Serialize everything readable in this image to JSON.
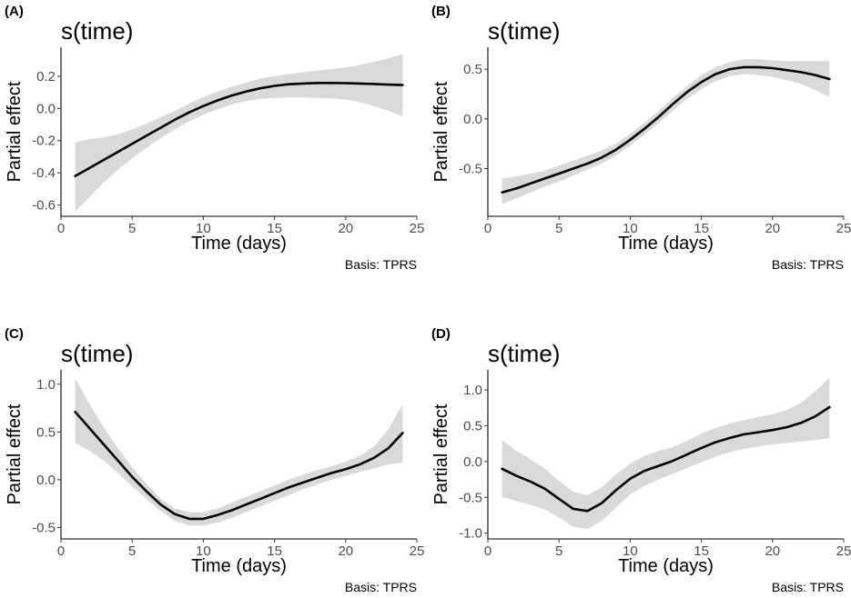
{
  "chart_data": [
    {
      "panel": "(A)",
      "type": "line",
      "title": "s(time)",
      "xlabel": "Time (days)",
      "ylabel": "Partial effect",
      "caption": "Basis: TPRS",
      "xlim": [
        0,
        25
      ],
      "ylim": [
        -0.67,
        0.38
      ],
      "xticks": [
        0,
        5,
        10,
        15,
        20,
        25
      ],
      "xtick_labels": [
        "0",
        "5",
        "10",
        "15",
        "20",
        "25"
      ],
      "yticks": [
        -0.6,
        -0.4,
        -0.2,
        0.0,
        0.2
      ],
      "ytick_labels": [
        "-0.6",
        "-0.4",
        "-0.2",
        "0.0",
        "0.2"
      ],
      "x": [
        1,
        2,
        3,
        4,
        5,
        6,
        7,
        8,
        9,
        10,
        11,
        12,
        13,
        14,
        15,
        16,
        17,
        18,
        19,
        20,
        21,
        22,
        23,
        24
      ],
      "fit": [
        -0.42,
        -0.37,
        -0.32,
        -0.27,
        -0.22,
        -0.17,
        -0.12,
        -0.07,
        -0.025,
        0.015,
        0.05,
        0.08,
        0.105,
        0.125,
        0.14,
        0.15,
        0.155,
        0.158,
        0.158,
        0.157,
        0.155,
        0.152,
        0.148,
        0.145
      ],
      "lower": [
        -0.64,
        -0.55,
        -0.46,
        -0.38,
        -0.31,
        -0.245,
        -0.185,
        -0.13,
        -0.08,
        -0.04,
        -0.005,
        0.025,
        0.045,
        0.06,
        0.065,
        0.068,
        0.068,
        0.066,
        0.062,
        0.055,
        0.04,
        0.015,
        -0.015,
        -0.05
      ],
      "upper": [
        -0.21,
        -0.19,
        -0.18,
        -0.16,
        -0.13,
        -0.095,
        -0.055,
        -0.015,
        0.03,
        0.07,
        0.105,
        0.135,
        0.16,
        0.185,
        0.2,
        0.215,
        0.225,
        0.235,
        0.245,
        0.255,
        0.27,
        0.29,
        0.31,
        0.34
      ]
    },
    {
      "panel": "(B)",
      "type": "line",
      "title": "s(time)",
      "xlabel": "Time (days)",
      "ylabel": "Partial effect",
      "caption": "Basis: TPRS",
      "xlim": [
        0,
        25
      ],
      "ylim": [
        -0.98,
        0.72
      ],
      "xticks": [
        0,
        5,
        10,
        15,
        20,
        25
      ],
      "xtick_labels": [
        "0",
        "5",
        "10",
        "15",
        "20",
        "25"
      ],
      "yticks": [
        -0.5,
        0.0,
        0.5
      ],
      "ytick_labels": [
        "-0.5",
        "0.0",
        "0.5"
      ],
      "x": [
        1,
        2,
        3,
        4,
        5,
        6,
        7,
        8,
        9,
        10,
        11,
        12,
        13,
        14,
        15,
        16,
        17,
        18,
        19,
        20,
        21,
        22,
        23,
        24
      ],
      "fit": [
        -0.74,
        -0.7,
        -0.65,
        -0.6,
        -0.55,
        -0.5,
        -0.45,
        -0.39,
        -0.31,
        -0.21,
        -0.1,
        0.02,
        0.15,
        0.27,
        0.37,
        0.45,
        0.5,
        0.52,
        0.52,
        0.51,
        0.49,
        0.47,
        0.44,
        0.4
      ],
      "lower": [
        -0.86,
        -0.8,
        -0.74,
        -0.68,
        -0.63,
        -0.57,
        -0.51,
        -0.45,
        -0.37,
        -0.27,
        -0.16,
        -0.04,
        0.08,
        0.2,
        0.3,
        0.38,
        0.43,
        0.45,
        0.44,
        0.42,
        0.39,
        0.35,
        0.29,
        0.22
      ],
      "upper": [
        -0.6,
        -0.58,
        -0.55,
        -0.52,
        -0.47,
        -0.42,
        -0.37,
        -0.32,
        -0.25,
        -0.15,
        -0.04,
        0.08,
        0.21,
        0.33,
        0.44,
        0.52,
        0.57,
        0.6,
        0.6,
        0.59,
        0.58,
        0.58,
        0.58,
        0.58
      ]
    },
    {
      "panel": "(C)",
      "type": "line",
      "title": "s(time)",
      "xlabel": "Time (days)",
      "ylabel": "Partial effect",
      "caption": "Basis: TPRS",
      "xlim": [
        0,
        25
      ],
      "ylim": [
        -0.62,
        1.15
      ],
      "xticks": [
        0,
        5,
        10,
        15,
        20,
        25
      ],
      "xtick_labels": [
        "0",
        "5",
        "10",
        "15",
        "20",
        "25"
      ],
      "yticks": [
        -0.5,
        0.0,
        0.5,
        1.0
      ],
      "ytick_labels": [
        "-0.5",
        "0.0",
        "0.5",
        "1.0"
      ],
      "x": [
        1,
        2,
        3,
        4,
        5,
        6,
        7,
        8,
        9,
        10,
        11,
        12,
        13,
        14,
        15,
        16,
        17,
        18,
        19,
        20,
        21,
        22,
        23,
        24
      ],
      "fit": [
        0.71,
        0.54,
        0.37,
        0.2,
        0.03,
        -0.12,
        -0.26,
        -0.36,
        -0.41,
        -0.41,
        -0.37,
        -0.32,
        -0.26,
        -0.2,
        -0.14,
        -0.08,
        -0.03,
        0.02,
        0.07,
        0.11,
        0.16,
        0.23,
        0.33,
        0.49
      ],
      "lower": [
        0.39,
        0.3,
        0.2,
        0.07,
        -0.07,
        -0.2,
        -0.33,
        -0.43,
        -0.48,
        -0.48,
        -0.45,
        -0.4,
        -0.34,
        -0.28,
        -0.22,
        -0.16,
        -0.1,
        -0.05,
        0.0,
        0.04,
        0.08,
        0.12,
        0.16,
        0.18
      ],
      "upper": [
        1.06,
        0.79,
        0.55,
        0.33,
        0.13,
        -0.04,
        -0.2,
        -0.3,
        -0.34,
        -0.34,
        -0.3,
        -0.24,
        -0.18,
        -0.12,
        -0.06,
        0.0,
        0.05,
        0.1,
        0.14,
        0.19,
        0.25,
        0.35,
        0.53,
        0.79
      ]
    },
    {
      "panel": "(D)",
      "type": "line",
      "title": "s(time)",
      "xlabel": "Time (days)",
      "ylabel": "Partial effect",
      "caption": "Basis: TPRS",
      "xlim": [
        0,
        25
      ],
      "ylim": [
        -1.08,
        1.28
      ],
      "xticks": [
        0,
        5,
        10,
        15,
        20,
        25
      ],
      "xtick_labels": [
        "0",
        "5",
        "10",
        "15",
        "20",
        "25"
      ],
      "yticks": [
        -1.0,
        -0.5,
        0.0,
        0.5,
        1.0
      ],
      "ytick_labels": [
        "-1.0",
        "-0.5",
        "0.0",
        "0.5",
        "1.0"
      ],
      "x": [
        1,
        2,
        3,
        4,
        5,
        6,
        7,
        8,
        9,
        10,
        11,
        12,
        13,
        14,
        15,
        16,
        17,
        18,
        19,
        20,
        21,
        22,
        23,
        24
      ],
      "fit": [
        -0.1,
        -0.2,
        -0.28,
        -0.38,
        -0.52,
        -0.66,
        -0.69,
        -0.58,
        -0.4,
        -0.24,
        -0.13,
        -0.06,
        0.01,
        0.1,
        0.19,
        0.27,
        0.33,
        0.38,
        0.41,
        0.44,
        0.48,
        0.54,
        0.63,
        0.76
      ],
      "lower": [
        -0.49,
        -0.55,
        -0.6,
        -0.67,
        -0.78,
        -0.91,
        -0.94,
        -0.83,
        -0.64,
        -0.46,
        -0.34,
        -0.25,
        -0.17,
        -0.09,
        -0.01,
        0.07,
        0.13,
        0.18,
        0.21,
        0.24,
        0.26,
        0.28,
        0.3,
        0.33
      ],
      "upper": [
        0.3,
        0.15,
        0.03,
        -0.1,
        -0.27,
        -0.42,
        -0.47,
        -0.36,
        -0.18,
        -0.03,
        0.08,
        0.15,
        0.2,
        0.29,
        0.39,
        0.47,
        0.53,
        0.58,
        0.62,
        0.66,
        0.72,
        0.82,
        0.98,
        1.17
      ]
    }
  ]
}
